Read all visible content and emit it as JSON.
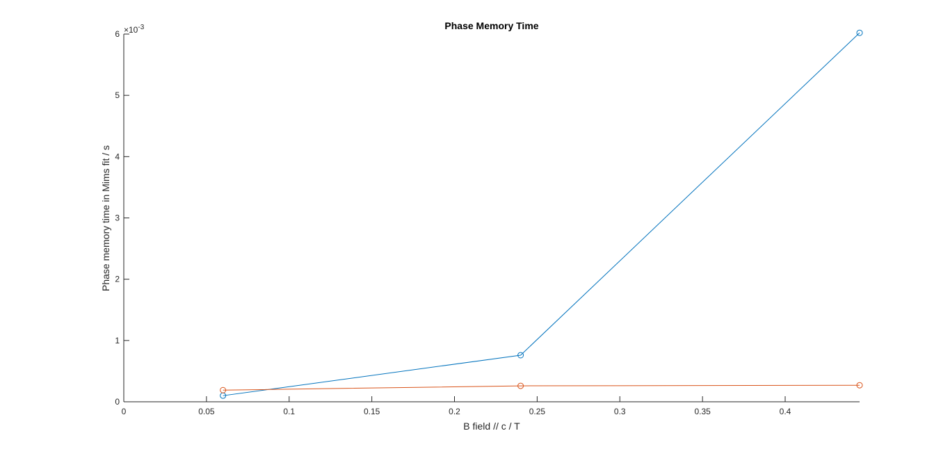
{
  "chart_data": {
    "type": "line",
    "title": "Phase Memory Time",
    "xlabel": "B field // c / T",
    "ylabel": "Phase memory time in Mims fit / s",
    "exponent_label": "×10",
    "exponent_power": "-3",
    "xlim": [
      0,
      0.445
    ],
    "ylim": [
      0,
      0.006
    ],
    "x_ticks": [
      0,
      0.05,
      0.1,
      0.15,
      0.2,
      0.25,
      0.3,
      0.35,
      0.4
    ],
    "x_tick_labels": [
      "0",
      "0.05",
      "0.1",
      "0.15",
      "0.2",
      "0.25",
      "0.3",
      "0.35",
      "0.4"
    ],
    "y_ticks": [
      0,
      0.001,
      0.002,
      0.003,
      0.004,
      0.005,
      0.006
    ],
    "y_tick_labels": [
      "0",
      "1",
      "2",
      "3",
      "4",
      "5",
      "6"
    ],
    "grid": false,
    "marker": "circle",
    "series": [
      {
        "color": "#0072BD",
        "x": [
          0.06,
          0.24,
          0.445
        ],
        "y": [
          0.0001,
          0.00076,
          0.00602
        ]
      },
      {
        "color": "#D95319",
        "x": [
          0.06,
          0.24,
          0.445
        ],
        "y": [
          0.00019,
          0.00026,
          0.00027
        ]
      }
    ]
  }
}
